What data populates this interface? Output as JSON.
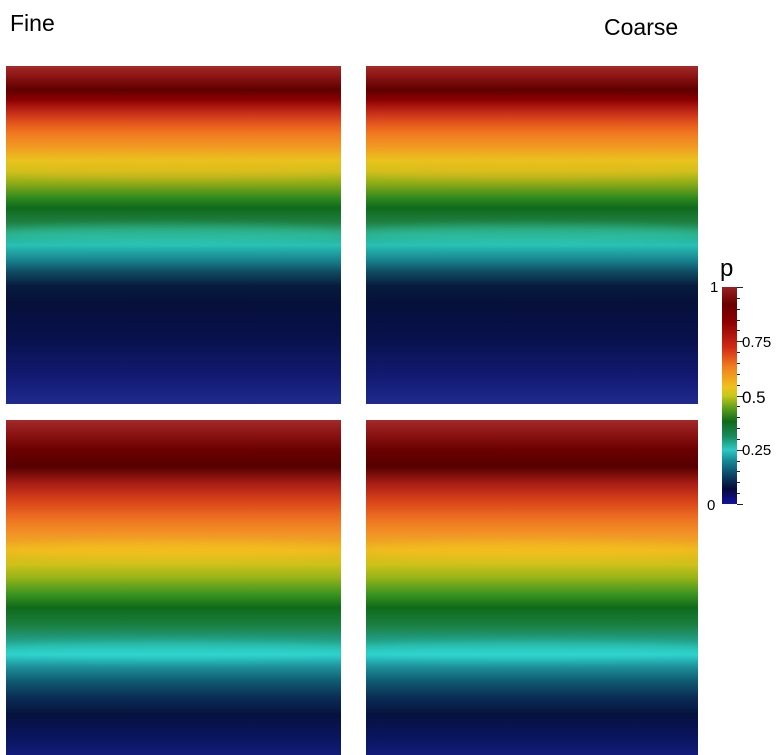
{
  "labels": {
    "left_column": "Fine",
    "right_column": "Coarse"
  },
  "colorbar": {
    "title": "p",
    "ticks": [
      "1",
      "0.75",
      "0.5",
      "0.25",
      "0"
    ],
    "range": [
      0,
      1
    ],
    "colormap": [
      "#1212a0",
      "#2ec8c4",
      "#0e6a1a",
      "#f0c01e",
      "#d22a16",
      "#6a0000",
      "#9a2020"
    ]
  }
}
